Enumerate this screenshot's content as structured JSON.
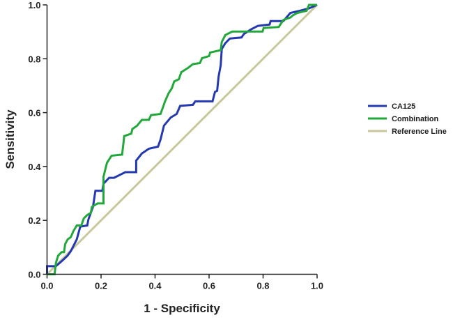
{
  "chart_data": {
    "type": "line",
    "title": "",
    "xlabel": "1 - Specificity",
    "ylabel": "Sensitivity",
    "xlim": [
      0,
      1
    ],
    "ylim": [
      0,
      1
    ],
    "xticks": [
      "0.0",
      "0.2",
      "0.4",
      "0.6",
      "0.8",
      "1.0"
    ],
    "yticks": [
      "0.0",
      "0.2",
      "0.4",
      "0.6",
      "0.8",
      "1.0"
    ],
    "grid": false,
    "legend_position": "right",
    "series": [
      {
        "name": "CA125",
        "color": "#2438b0",
        "x": [
          0,
          0,
          0.033,
          0.058,
          0.076,
          0.088,
          0.11,
          0.123,
          0.149,
          0.153,
          0.17,
          0.179,
          0.205,
          0.209,
          0.23,
          0.248,
          0.29,
          0.33,
          0.33,
          0.351,
          0.377,
          0.411,
          0.42,
          0.433,
          0.458,
          0.48,
          0.493,
          0.54,
          0.549,
          0.613,
          0.622,
          0.63,
          0.635,
          0.643,
          0.647,
          0.66,
          0.677,
          0.72,
          0.729,
          0.755,
          0.781,
          0.824,
          0.828,
          0.875,
          0.901,
          0.936,
          0.97,
          1
        ],
        "y": [
          0,
          0.03,
          0.03,
          0.052,
          0.069,
          0.086,
          0.129,
          0.177,
          0.181,
          0.203,
          0.25,
          0.31,
          0.31,
          0.336,
          0.358,
          0.358,
          0.379,
          0.379,
          0.422,
          0.448,
          0.466,
          0.474,
          0.5,
          0.552,
          0.582,
          0.595,
          0.625,
          0.629,
          0.642,
          0.642,
          0.677,
          0.681,
          0.733,
          0.776,
          0.836,
          0.858,
          0.875,
          0.879,
          0.892,
          0.909,
          0.922,
          0.927,
          0.94,
          0.94,
          0.97,
          0.978,
          0.987,
          1
        ]
      },
      {
        "name": "Combination",
        "color": "#22a83a",
        "x": [
          0,
          0.028,
          0.033,
          0.041,
          0.054,
          0.063,
          0.067,
          0.076,
          0.088,
          0.097,
          0.11,
          0.127,
          0.136,
          0.149,
          0.162,
          0.166,
          0.187,
          0.209,
          0.209,
          0.222,
          0.239,
          0.278,
          0.286,
          0.312,
          0.316,
          0.334,
          0.351,
          0.377,
          0.385,
          0.42,
          0.428,
          0.437,
          0.45,
          0.462,
          0.471,
          0.488,
          0.497,
          0.523,
          0.54,
          0.566,
          0.574,
          0.6,
          0.604,
          0.643,
          0.647,
          0.66,
          0.686,
          0.798,
          0.802,
          0.858,
          0.875,
          0.901,
          0.91,
          0.927,
          0.961,
          0.97,
          1
        ],
        "y": [
          0,
          0,
          0.043,
          0.069,
          0.082,
          0.082,
          0.112,
          0.129,
          0.138,
          0.159,
          0.181,
          0.181,
          0.207,
          0.22,
          0.228,
          0.25,
          0.263,
          0.263,
          0.362,
          0.414,
          0.44,
          0.444,
          0.513,
          0.522,
          0.539,
          0.552,
          0.573,
          0.573,
          0.591,
          0.595,
          0.616,
          0.642,
          0.672,
          0.69,
          0.716,
          0.724,
          0.75,
          0.767,
          0.78,
          0.784,
          0.802,
          0.81,
          0.823,
          0.832,
          0.862,
          0.888,
          0.901,
          0.901,
          0.914,
          0.918,
          0.944,
          0.953,
          0.961,
          0.97,
          0.978,
          1,
          1
        ]
      },
      {
        "name": "Reference Line",
        "color": "#c9c79c",
        "x": [
          0,
          1
        ],
        "y": [
          0,
          1
        ]
      }
    ]
  }
}
